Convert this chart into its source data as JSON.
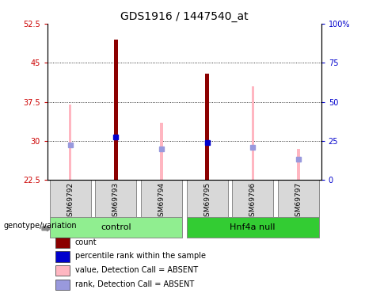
{
  "title": "GDS1916 / 1447540_at",
  "samples": [
    "GSM69792",
    "GSM69793",
    "GSM69794",
    "GSM69795",
    "GSM69796",
    "GSM69797"
  ],
  "ylim_left": [
    22.5,
    52.5
  ],
  "ylim_right": [
    0,
    100
  ],
  "yticks_left": [
    22.5,
    30,
    37.5,
    45,
    52.5
  ],
  "yticks_right": [
    0,
    25,
    50,
    75,
    100
  ],
  "ytick_labels_left": [
    "22.5",
    "30",
    "37.5",
    "45",
    "52.5"
  ],
  "ytick_labels_right": [
    "0",
    "25",
    "50",
    "75",
    "100%"
  ],
  "count_values": [
    0,
    49.5,
    0,
    43.0,
    0,
    0
  ],
  "rank_values": [
    0,
    30.8,
    0,
    29.7,
    0,
    0
  ],
  "value_absent": [
    37.0,
    0,
    33.5,
    0,
    40.5,
    28.5
  ],
  "rank_absent": [
    29.2,
    0,
    28.5,
    0,
    28.8,
    26.5
  ],
  "count_color": "#8B0000",
  "rank_color": "#0000CD",
  "value_absent_color": "#FFB6C1",
  "rank_absent_color": "#9999DD",
  "left_tick_color": "#CC0000",
  "right_tick_color": "#0000CC",
  "control_color": "#90EE90",
  "hnf4a_color": "#33CC33",
  "bg_color": "#D8D8D8",
  "group_spans": [
    {
      "name": "control",
      "start": 0,
      "end": 2
    },
    {
      "name": "Hnf4a null",
      "start": 3,
      "end": 5
    }
  ],
  "legend_items": [
    {
      "color": "#8B0000",
      "label": "count"
    },
    {
      "color": "#0000CD",
      "label": "percentile rank within the sample"
    },
    {
      "color": "#FFB6C1",
      "label": "value, Detection Call = ABSENT"
    },
    {
      "color": "#9999DD",
      "label": "rank, Detection Call = ABSENT"
    }
  ],
  "thin_bar_width": 0.06,
  "count_bar_width": 0.08,
  "rank_marker_size": 5
}
